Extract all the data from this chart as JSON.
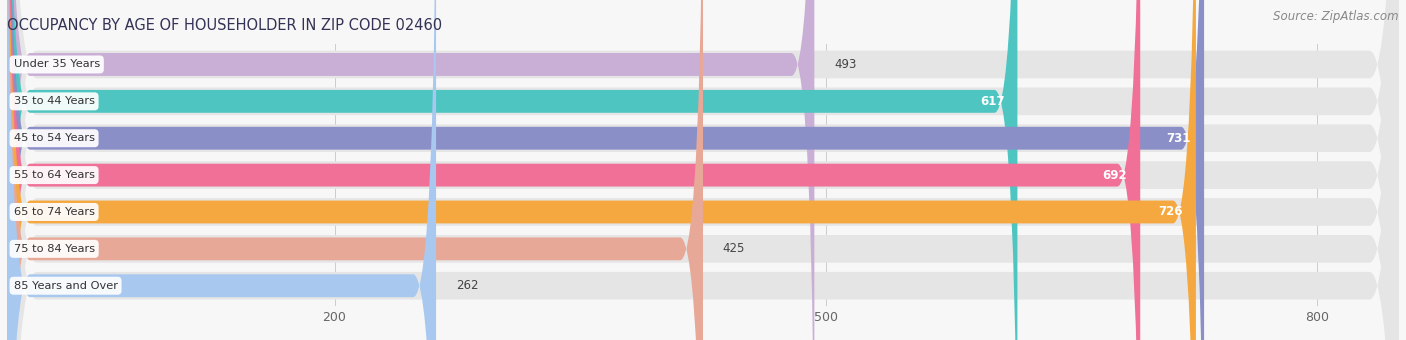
{
  "title": "OCCUPANCY BY AGE OF HOUSEHOLDER IN ZIP CODE 02460",
  "source": "Source: ZipAtlas.com",
  "categories": [
    "Under 35 Years",
    "35 to 44 Years",
    "45 to 54 Years",
    "55 to 64 Years",
    "65 to 74 Years",
    "75 to 84 Years",
    "85 Years and Over"
  ],
  "values": [
    493,
    617,
    731,
    692,
    726,
    425,
    262
  ],
  "bar_colors": [
    "#c9aed6",
    "#4ec5c1",
    "#8b8fc8",
    "#f07098",
    "#f5a840",
    "#e8a898",
    "#a8c8f0"
  ],
  "label_color_dark": [
    true,
    false,
    false,
    false,
    false,
    true,
    true
  ],
  "value_color_white": [
    false,
    true,
    true,
    true,
    true,
    false,
    false
  ],
  "xticks": [
    200,
    500,
    800
  ],
  "xmax": 850,
  "title_fontsize": 10.5,
  "source_fontsize": 8.5,
  "background_color": "#f7f7f7",
  "bar_bg_color": "#e5e5e5"
}
